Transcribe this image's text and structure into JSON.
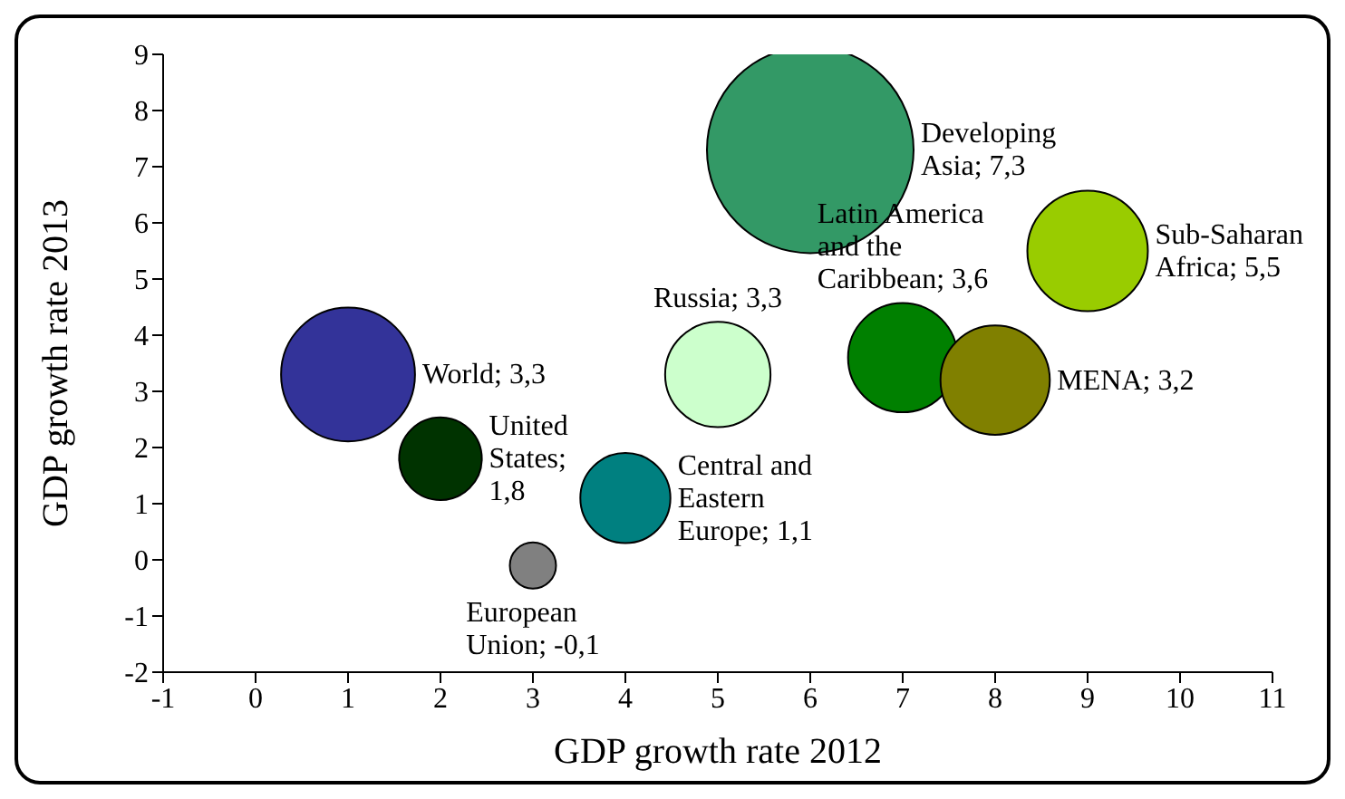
{
  "chart_data": {
    "type": "bubble",
    "xlabel": "GDP growth rate 2012",
    "ylabel": "GDP growth rate  2013",
    "x": [
      1,
      2,
      3,
      4,
      5,
      6,
      7,
      8,
      9
    ],
    "xlim": [
      -1,
      11
    ],
    "xticks": [
      -1,
      0,
      1,
      2,
      3,
      4,
      5,
      6,
      7,
      8,
      9,
      10,
      11
    ],
    "ylim": [
      -2,
      9
    ],
    "yticks": [
      -2,
      -1,
      0,
      1,
      2,
      3,
      4,
      5,
      6,
      7,
      8,
      9
    ],
    "grid": false,
    "legend": false,
    "values": [
      3.3,
      1.8,
      -0.1,
      1.1,
      3.3,
      7.3,
      3.6,
      3.2,
      5.5
    ],
    "sizes": [
      0.42,
      0.16,
      0.05,
      0.19,
      0.26,
      1,
      0.28,
      0.28,
      0.34
    ],
    "colors": [
      "#333399",
      "#003300",
      "#808080",
      "#008080",
      "#ccffcc",
      "#339966",
      "#008000",
      "#808000",
      "#99cc00"
    ],
    "value_labels": [
      "World; 3,3",
      "United States; 1,8",
      "European Union; -0,1",
      "Central and Eastern Europe; 1,1",
      "Russia; 3,3",
      "Developing Asia; 7,3",
      "Latin America and the Caribbean; 3,6",
      "MENA; 3,2",
      "Sub-Saharan Africa; 5,5"
    ]
  }
}
